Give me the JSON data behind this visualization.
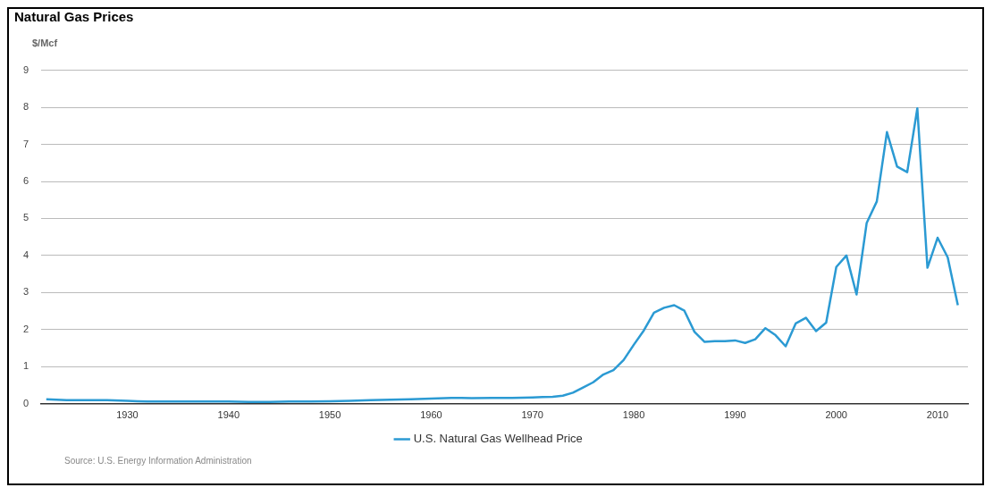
{
  "chart_data": {
    "type": "line",
    "title": "Natural Gas Prices",
    "ylabel": "$/Mcf",
    "x": [
      1922,
      1924,
      1926,
      1928,
      1930,
      1931,
      1932,
      1934,
      1936,
      1938,
      1940,
      1942,
      1944,
      1946,
      1948,
      1950,
      1952,
      1954,
      1956,
      1958,
      1960,
      1962,
      1963,
      1964,
      1966,
      1968,
      1970,
      1971,
      1972,
      1973,
      1974,
      1975,
      1976,
      1977,
      1978,
      1979,
      1980,
      1981,
      1982,
      1983,
      1984,
      1985,
      1986,
      1987,
      1988,
      1989,
      1990,
      1991,
      1992,
      1993,
      1994,
      1995,
      1996,
      1997,
      1998,
      1999,
      2000,
      2001,
      2002,
      2003,
      2004,
      2005,
      2006,
      2007,
      2008,
      2009,
      2010,
      2011,
      2012
    ],
    "series": [
      {
        "name": "U.S. Natural Gas Wellhead Price",
        "color": "#2b9ad3",
        "values": [
          0.12,
          0.1,
          0.1,
          0.1,
          0.08,
          0.07,
          0.06,
          0.06,
          0.06,
          0.06,
          0.06,
          0.05,
          0.05,
          0.06,
          0.06,
          0.07,
          0.08,
          0.1,
          0.11,
          0.12,
          0.14,
          0.16,
          0.16,
          0.15,
          0.16,
          0.16,
          0.17,
          0.18,
          0.19,
          0.22,
          0.3,
          0.44,
          0.58,
          0.79,
          0.91,
          1.18,
          1.59,
          1.98,
          2.46,
          2.59,
          2.66,
          2.51,
          1.94,
          1.67,
          1.69,
          1.69,
          1.71,
          1.64,
          1.74,
          2.04,
          1.85,
          1.55,
          2.17,
          2.32,
          1.96,
          2.19,
          3.69,
          4,
          2.95,
          4.88,
          5.46,
          7.33,
          6.4,
          6.25,
          7.97,
          3.67,
          4.48,
          3.95,
          2.66
        ]
      }
    ],
    "xlim": [
      1921.5,
      2013
    ],
    "xticks": [
      1930,
      1940,
      1950,
      1960,
      1970,
      1980,
      1990,
      2000,
      2010
    ],
    "ylim": [
      0,
      9
    ],
    "yticks": [
      0,
      1,
      2,
      3,
      4,
      5,
      6,
      7,
      8,
      9
    ],
    "grid": "y",
    "legend": "bottom",
    "marker": "none",
    "line_style": "solid",
    "annotations": [
      "Source: U.S. Energy Information Administration"
    ]
  }
}
